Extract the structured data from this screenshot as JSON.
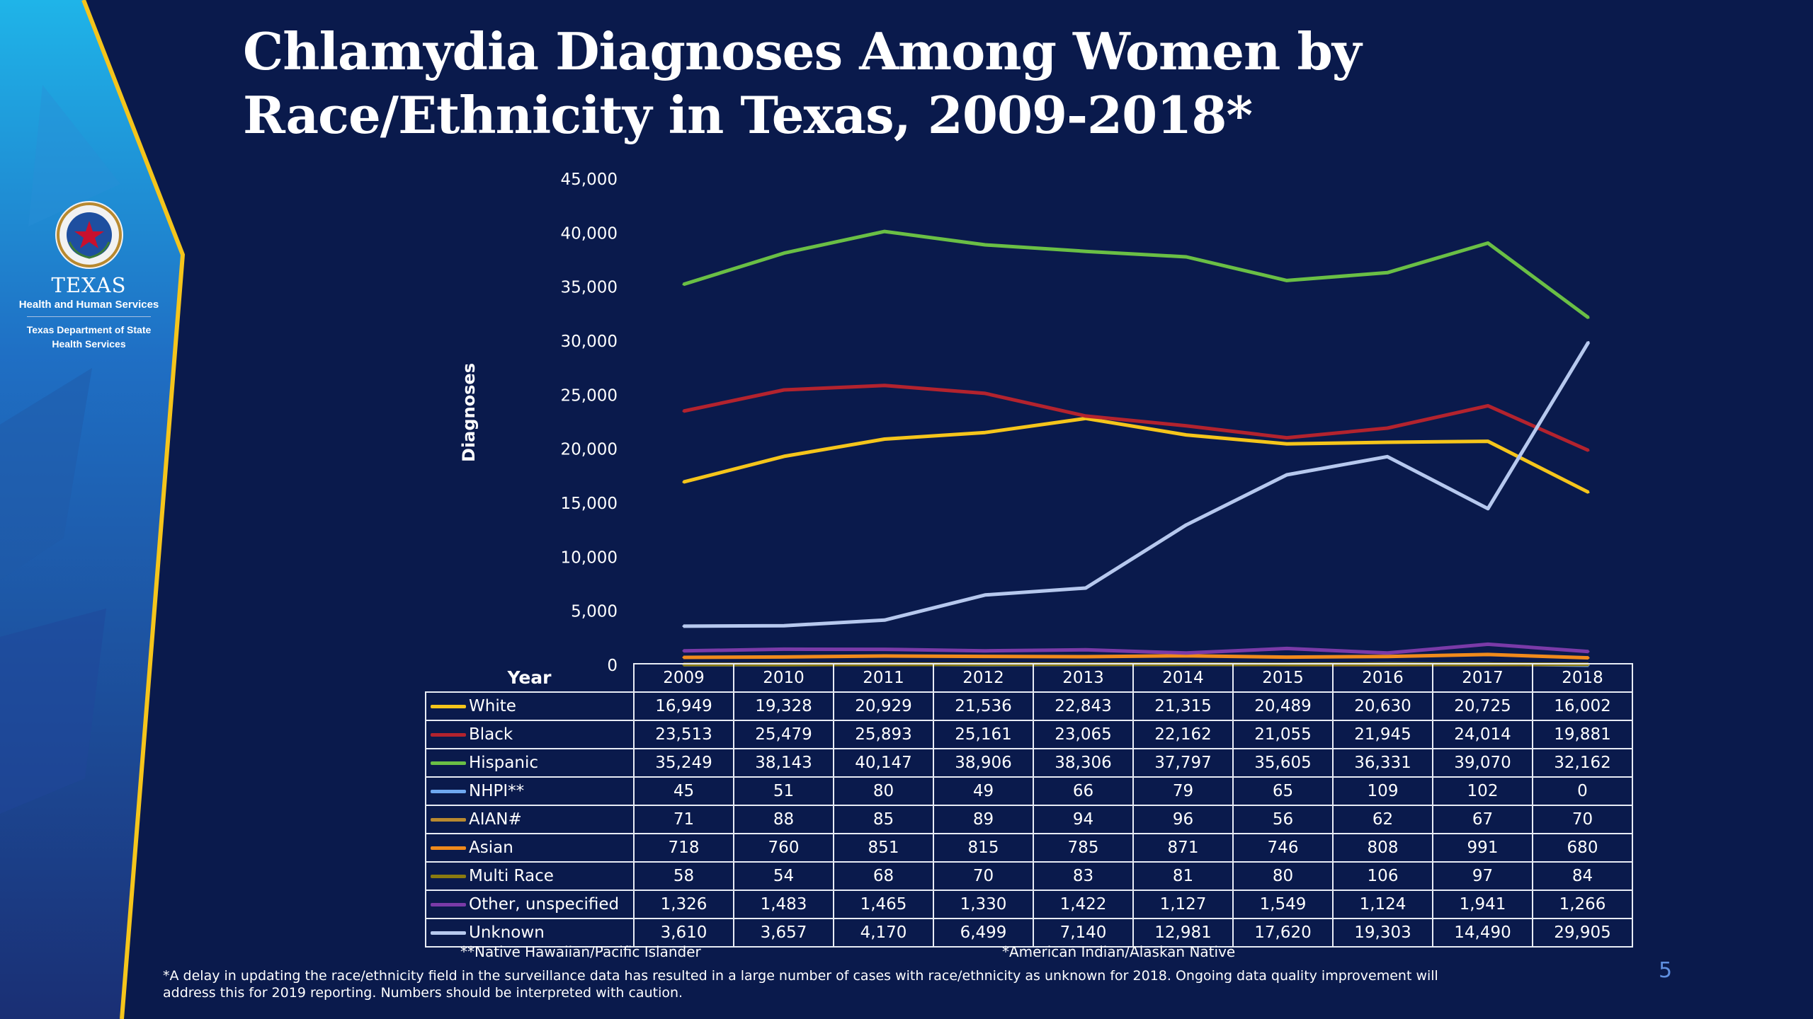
{
  "slide": {
    "title_line1": "Chlamydia Diagnoses Among Women by",
    "title_line2": "Race/Ethnicity in Texas, 2009-2018*",
    "logo": {
      "agency": "TEXAS",
      "subtitle": "Health and Human Services",
      "department_line1": "Texas Department of State",
      "department_line2": "Health Services"
    },
    "notes": {
      "nhpi": "**Native Hawaiian/Pacific Islander",
      "aian": "*American Indian/Alaskan Native"
    },
    "footnote_line1": "*A delay in updating the race/ethnicity field in the surveillance data has resulted in a large number of cases with race/ethnicity as unknown for 2018. Ongoing data quality improvement will",
    "footnote_line2": "address this for 2019 reporting. Numbers should be interpreted with caution.",
    "page_number": "5",
    "colors": {
      "background": "#0a1a4c",
      "accent_yellow": "#f5c51b"
    }
  },
  "chart_data": {
    "type": "line",
    "title": "Chlamydia Diagnoses Among Women by Race/Ethnicity in Texas, 2009-2018*",
    "ylabel": "Diagnoses",
    "table_header": "Year",
    "ylim": [
      0,
      45000
    ],
    "yticks": [
      "0",
      "5,000",
      "10,000",
      "15,000",
      "20,000",
      "25,000",
      "30,000",
      "35,000",
      "40,000",
      "45,000"
    ],
    "grid": false,
    "legend": "data table below chart",
    "x": [
      "2009",
      "2010",
      "2011",
      "2012",
      "2013",
      "2014",
      "2015",
      "2016",
      "2017",
      "2018"
    ],
    "series": [
      {
        "name": "White",
        "color": "#f5c51b",
        "values": [
          16949,
          19328,
          20929,
          21536,
          22843,
          21315,
          20489,
          20630,
          20725,
          16002
        ],
        "labels": [
          "16,949",
          "19,328",
          "20,929",
          "21,536",
          "22,843",
          "21,315",
          "20,489",
          "20,630",
          "20,725",
          "16,002"
        ]
      },
      {
        "name": "Black",
        "color": "#b3232e",
        "values": [
          23513,
          25479,
          25893,
          25161,
          23065,
          22162,
          21055,
          21945,
          24014,
          19881
        ],
        "labels": [
          "23,513",
          "25,479",
          "25,893",
          "25,161",
          "23,065",
          "22,162",
          "21,055",
          "21,945",
          "24,014",
          "19,881"
        ]
      },
      {
        "name": "Hispanic",
        "color": "#6abf45",
        "values": [
          35249,
          38143,
          40147,
          38906,
          38306,
          37797,
          35605,
          36331,
          39070,
          32162
        ],
        "labels": [
          "35,249",
          "38,143",
          "40,147",
          "38,906",
          "38,306",
          "37,797",
          "35,605",
          "36,331",
          "39,070",
          "32,162"
        ]
      },
      {
        "name": "NHPI**",
        "color": "#6fa8f0",
        "values": [
          45,
          51,
          80,
          49,
          66,
          79,
          65,
          109,
          102,
          0
        ],
        "labels": [
          "45",
          "51",
          "80",
          "49",
          "66",
          "79",
          "65",
          "109",
          "102",
          "0"
        ]
      },
      {
        "name": "AIAN#",
        "color": "#b8892f",
        "values": [
          71,
          88,
          85,
          89,
          94,
          96,
          56,
          62,
          67,
          70
        ],
        "labels": [
          "71",
          "88",
          "85",
          "89",
          "94",
          "96",
          "56",
          "62",
          "67",
          "70"
        ]
      },
      {
        "name": "Asian",
        "color": "#f08a1c",
        "values": [
          718,
          760,
          851,
          815,
          785,
          871,
          746,
          808,
          991,
          680
        ],
        "labels": [
          "718",
          "760",
          "851",
          "815",
          "785",
          "871",
          "746",
          "808",
          "991",
          "680"
        ]
      },
      {
        "name": "Multi Race",
        "color": "#8a7a10",
        "values": [
          58,
          54,
          68,
          70,
          83,
          81,
          80,
          106,
          97,
          84
        ],
        "labels": [
          "58",
          "54",
          "68",
          "70",
          "83",
          "81",
          "80",
          "106",
          "97",
          "84"
        ]
      },
      {
        "name": "Other, unspecified",
        "color": "#7a3aa8",
        "values": [
          1326,
          1483,
          1465,
          1330,
          1422,
          1127,
          1549,
          1124,
          1941,
          1266
        ],
        "labels": [
          "1,326",
          "1,483",
          "1,465",
          "1,330",
          "1,422",
          "1,127",
          "1,549",
          "1,124",
          "1,941",
          "1,266"
        ]
      },
      {
        "name": "Unknown",
        "color": "#b6c8ee",
        "values": [
          3610,
          3657,
          4170,
          6499,
          7140,
          12981,
          17620,
          19303,
          14490,
          29905
        ],
        "labels": [
          "3,610",
          "3,657",
          "4,170",
          "6,499",
          "7,140",
          "12,981",
          "17,620",
          "19,303",
          "14,490",
          "29,905"
        ]
      }
    ]
  }
}
